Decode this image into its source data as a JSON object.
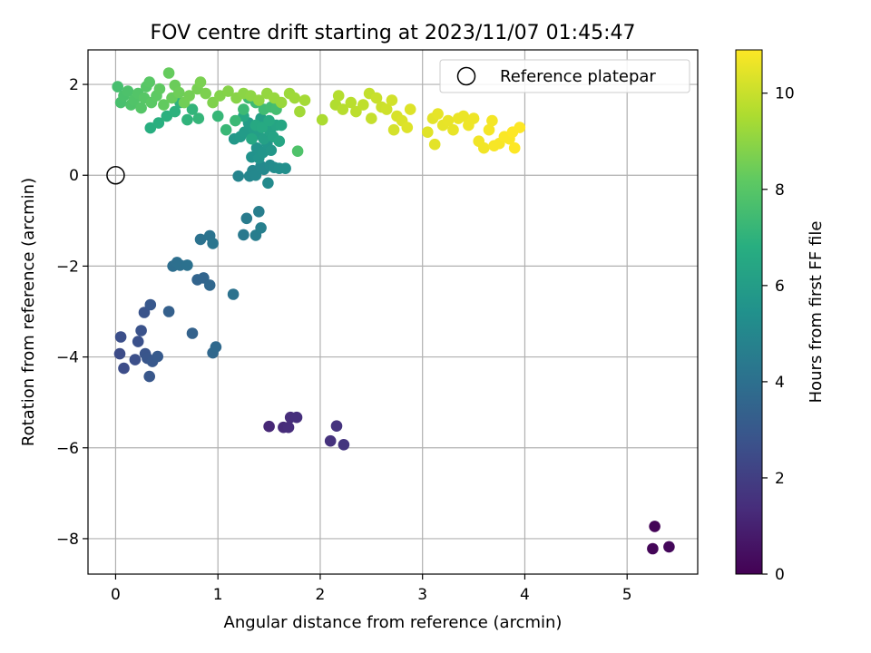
{
  "chart_data": {
    "type": "scatter",
    "title": "FOV centre drift starting at 2023/11/07 01:45:47",
    "xlabel": "Angular distance from reference (arcmin)",
    "ylabel": "Rotation from reference (arcmin)",
    "xlim": [
      -0.27,
      5.69
    ],
    "ylim": [
      -8.78,
      2.76
    ],
    "xticks": [
      0,
      1,
      2,
      3,
      4,
      5
    ],
    "yticks": [
      -8,
      -6,
      -4,
      -2,
      0,
      2
    ],
    "grid": true,
    "colormap": "viridis",
    "colorbar": {
      "label": "Hours from first FF file",
      "range": [
        0,
        10.9
      ],
      "ticks": [
        0,
        2,
        4,
        6,
        8,
        10
      ]
    },
    "legend": {
      "position": "top-right",
      "entries": [
        {
          "label": "Reference platepar",
          "marker": "open-circle"
        }
      ]
    },
    "reference_point": {
      "x": 0,
      "y": 0
    },
    "points": [
      [
        5.27,
        -7.73,
        0.1
      ],
      [
        5.25,
        -8.22,
        0.15
      ],
      [
        5.41,
        -8.18,
        0.2
      ],
      [
        1.5,
        -5.53,
        1.2
      ],
      [
        1.64,
        -5.55,
        1.3
      ],
      [
        1.69,
        -5.55,
        1.35
      ],
      [
        1.71,
        -5.33,
        1.4
      ],
      [
        1.77,
        -5.33,
        1.45
      ],
      [
        2.1,
        -5.85,
        1.55
      ],
      [
        2.16,
        -5.52,
        1.6
      ],
      [
        2.23,
        -5.93,
        1.65
      ],
      [
        0.04,
        -3.93,
        2.5
      ],
      [
        0.08,
        -4.25,
        2.55
      ],
      [
        0.05,
        -3.56,
        2.6
      ],
      [
        0.19,
        -4.06,
        2.65
      ],
      [
        0.22,
        -3.66,
        2.7
      ],
      [
        0.25,
        -3.42,
        2.75
      ],
      [
        0.28,
        -3.02,
        2.8
      ],
      [
        0.29,
        -3.93,
        2.85
      ],
      [
        0.31,
        -4.03,
        2.9
      ],
      [
        0.33,
        -4.43,
        2.95
      ],
      [
        0.36,
        -4.1,
        3.0
      ],
      [
        0.34,
        -2.85,
        3.0
      ],
      [
        0.41,
        -3.99,
        3.05
      ],
      [
        0.52,
        -3.0,
        3.3
      ],
      [
        0.75,
        -3.48,
        3.4
      ],
      [
        0.8,
        -2.3,
        3.5
      ],
      [
        0.86,
        -2.26,
        3.55
      ],
      [
        0.92,
        -2.42,
        3.6
      ],
      [
        0.95,
        -3.91,
        3.65
      ],
      [
        0.98,
        -3.78,
        3.7
      ],
      [
        0.56,
        -2.0,
        3.9
      ],
      [
        0.6,
        -1.92,
        3.95
      ],
      [
        0.63,
        -1.98,
        4.0
      ],
      [
        0.7,
        -1.98,
        4.05
      ],
      [
        0.83,
        -1.41,
        4.1
      ],
      [
        0.92,
        -1.33,
        4.15
      ],
      [
        0.95,
        -1.5,
        4.2
      ],
      [
        1.15,
        -2.62,
        4.1
      ],
      [
        1.25,
        -1.31,
        4.4
      ],
      [
        1.28,
        -0.95,
        4.5
      ],
      [
        1.37,
        -1.32,
        4.55
      ],
      [
        1.4,
        -0.8,
        4.6
      ],
      [
        1.42,
        -1.16,
        4.65
      ],
      [
        1.2,
        -0.02,
        4.9
      ],
      [
        1.31,
        -0.02,
        4.95
      ],
      [
        1.34,
        0.1,
        5.0
      ],
      [
        1.37,
        0.0,
        5.05
      ],
      [
        1.42,
        0.2,
        5.1
      ],
      [
        1.45,
        0.13,
        5.1
      ],
      [
        1.49,
        -0.17,
        5.15
      ],
      [
        1.51,
        0.22,
        5.2
      ],
      [
        1.55,
        0.17,
        5.25
      ],
      [
        1.6,
        0.15,
        5.3
      ],
      [
        1.66,
        0.15,
        5.35
      ],
      [
        1.33,
        0.4,
        5.5
      ],
      [
        1.38,
        0.6,
        5.55
      ],
      [
        1.4,
        0.38,
        5.6
      ],
      [
        1.44,
        0.5,
        5.65
      ],
      [
        1.48,
        0.7,
        5.7
      ],
      [
        1.52,
        0.55,
        5.75
      ],
      [
        1.16,
        0.8,
        5.8
      ],
      [
        1.22,
        0.85,
        5.85
      ],
      [
        1.26,
        0.95,
        5.9
      ],
      [
        1.3,
        1.15,
        5.95
      ],
      [
        1.35,
        1.0,
        6.0
      ],
      [
        1.39,
        0.9,
        6.05
      ],
      [
        1.42,
        1.25,
        6.1
      ],
      [
        1.45,
        0.8,
        6.15
      ],
      [
        1.48,
        1.05,
        6.2
      ],
      [
        1.51,
        0.95,
        6.25
      ],
      [
        1.54,
        0.85,
        6.3
      ],
      [
        1.57,
        1.1,
        6.35
      ],
      [
        1.6,
        0.75,
        6.4
      ],
      [
        1.62,
        1.1,
        6.45
      ],
      [
        1.25,
        1.3,
        6.5
      ],
      [
        1.33,
        0.8,
        6.5
      ],
      [
        1.37,
        1.1,
        6.55
      ],
      [
        1.43,
        1.05,
        6.6
      ],
      [
        1.5,
        1.2,
        6.6
      ],
      [
        0.34,
        1.04,
        6.8
      ],
      [
        0.42,
        1.15,
        6.85
      ],
      [
        0.5,
        1.3,
        6.9
      ],
      [
        0.58,
        1.4,
        6.95
      ],
      [
        0.63,
        1.6,
        7.0
      ],
      [
        0.7,
        1.22,
        7.05
      ],
      [
        0.75,
        1.45,
        7.1
      ],
      [
        0.81,
        1.25,
        7.15
      ],
      [
        1.0,
        1.3,
        7.2
      ],
      [
        1.08,
        1.0,
        7.25
      ],
      [
        1.17,
        1.2,
        7.3
      ],
      [
        1.25,
        1.45,
        7.35
      ],
      [
        1.3,
        1.7,
        7.4
      ],
      [
        1.37,
        1.6,
        7.4
      ],
      [
        1.45,
        1.45,
        7.45
      ],
      [
        1.52,
        1.5,
        7.5
      ],
      [
        1.57,
        1.45,
        7.55
      ],
      [
        0.02,
        1.95,
        7.6
      ],
      [
        0.05,
        1.6,
        7.65
      ],
      [
        0.08,
        1.75,
        7.7
      ],
      [
        0.12,
        1.85,
        7.75
      ],
      [
        0.15,
        1.55,
        7.8
      ],
      [
        0.18,
        1.65,
        7.85
      ],
      [
        0.22,
        1.8,
        7.9
      ],
      [
        0.25,
        1.48,
        7.95
      ],
      [
        0.28,
        1.7,
        8.0
      ],
      [
        0.3,
        1.95,
        8.0
      ],
      [
        0.33,
        2.05,
        8.05
      ],
      [
        0.35,
        1.6,
        8.1
      ],
      [
        0.4,
        1.75,
        8.15
      ],
      [
        0.43,
        1.9,
        8.2
      ],
      [
        0.47,
        1.55,
        8.25
      ],
      [
        0.52,
        2.25,
        8.3
      ],
      [
        0.55,
        1.7,
        8.35
      ],
      [
        0.58,
        1.98,
        8.4
      ],
      [
        0.62,
        1.82,
        8.45
      ],
      [
        0.67,
        1.6,
        8.5
      ],
      [
        0.72,
        1.75,
        8.55
      ],
      [
        0.8,
        1.9,
        8.6
      ],
      [
        0.83,
        2.05,
        8.65
      ],
      [
        0.88,
        1.8,
        8.7
      ],
      [
        0.95,
        1.6,
        8.75
      ],
      [
        1.02,
        1.75,
        8.8
      ],
      [
        1.1,
        1.85,
        8.85
      ],
      [
        1.18,
        1.7,
        8.9
      ],
      [
        1.25,
        1.8,
        8.95
      ],
      [
        1.32,
        1.75,
        9.0
      ],
      [
        1.4,
        1.65,
        9.05
      ],
      [
        1.48,
        1.8,
        9.1
      ],
      [
        1.55,
        1.7,
        9.15
      ],
      [
        1.62,
        1.6,
        9.2
      ],
      [
        1.7,
        1.8,
        9.25
      ],
      [
        1.75,
        1.7,
        9.3
      ],
      [
        1.8,
        1.4,
        9.35
      ],
      [
        1.85,
        1.65,
        9.4
      ],
      [
        1.78,
        0.53,
        7.8
      ],
      [
        2.02,
        1.22,
        9.5
      ],
      [
        2.15,
        1.55,
        9.6
      ],
      [
        2.18,
        1.75,
        9.65
      ],
      [
        2.22,
        1.45,
        9.7
      ],
      [
        2.3,
        1.6,
        9.75
      ],
      [
        2.35,
        1.4,
        9.8
      ],
      [
        2.42,
        1.55,
        9.85
      ],
      [
        2.48,
        1.8,
        9.9
      ],
      [
        2.5,
        1.25,
        9.95
      ],
      [
        2.55,
        1.7,
        10.0
      ],
      [
        2.6,
        1.5,
        10.05
      ],
      [
        2.65,
        1.45,
        10.1
      ],
      [
        2.7,
        1.65,
        10.15
      ],
      [
        2.72,
        1.0,
        10.2
      ],
      [
        2.75,
        1.3,
        10.25
      ],
      [
        2.8,
        1.2,
        10.3
      ],
      [
        2.85,
        1.05,
        10.35
      ],
      [
        2.88,
        1.45,
        10.35
      ],
      [
        3.05,
        0.95,
        10.4
      ],
      [
        3.1,
        1.25,
        10.45
      ],
      [
        3.12,
        0.68,
        10.45
      ],
      [
        3.15,
        1.35,
        10.5
      ],
      [
        3.2,
        1.1,
        10.5
      ],
      [
        3.25,
        1.2,
        10.55
      ],
      [
        3.3,
        1.0,
        10.55
      ],
      [
        3.35,
        1.25,
        10.6
      ],
      [
        3.4,
        1.3,
        10.6
      ],
      [
        3.45,
        1.1,
        10.65
      ],
      [
        3.5,
        1.25,
        10.65
      ],
      [
        3.55,
        0.75,
        10.7
      ],
      [
        3.6,
        0.6,
        10.7
      ],
      [
        3.65,
        1.0,
        10.75
      ],
      [
        3.68,
        1.2,
        10.75
      ],
      [
        3.7,
        0.65,
        10.8
      ],
      [
        3.75,
        0.7,
        10.8
      ],
      [
        3.8,
        0.85,
        10.85
      ],
      [
        3.85,
        0.8,
        10.85
      ],
      [
        3.9,
        0.6,
        10.9
      ],
      [
        3.95,
        1.05,
        10.9
      ],
      [
        3.88,
        0.95,
        10.9
      ]
    ]
  }
}
